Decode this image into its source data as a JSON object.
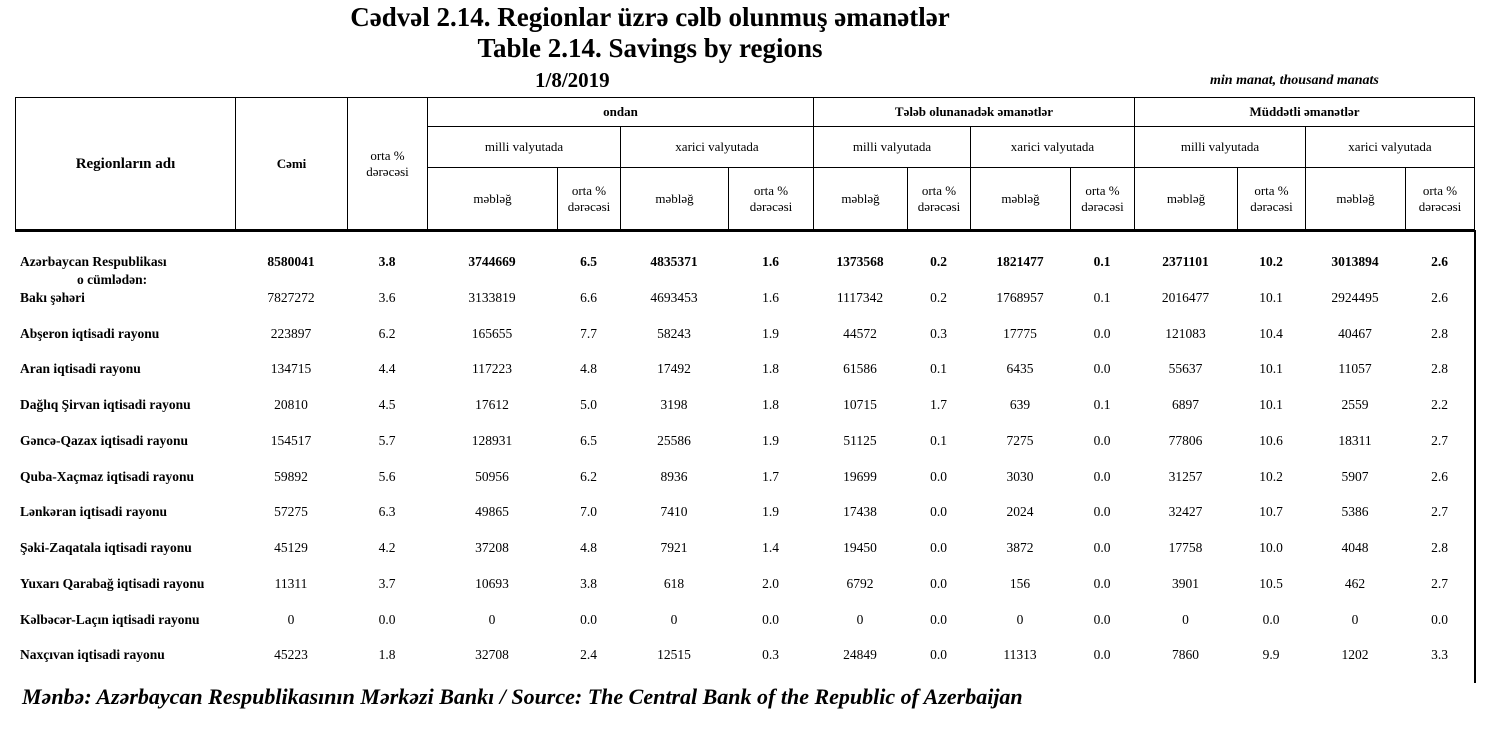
{
  "header": {
    "title_az": "Cədvəl 2.14. Regionlar üzrə cəlb olunmuş əmanətlər",
    "title_en": "Table 2.14. Savings by regions",
    "date": "1/8/2019",
    "units": "min manat, thousand manats"
  },
  "table": {
    "first_columns": [
      "Regionların adı",
      "Cəmi",
      "orta % dərəcəsi"
    ],
    "groups": [
      "ondan",
      "Tələb olunanadək əmanətlər",
      "Müddətli əmanətlər"
    ],
    "subgroups": [
      "milli valyutada",
      "xarici valyutada",
      "milli valyutada",
      "xarici valyutada",
      "milli valyutada",
      "xarici valyutada"
    ],
    "leaves": [
      "məbləğ",
      "orta % dərəcəsi",
      "məbləğ",
      "orta % dərəcəsi",
      "məbləğ",
      "orta % dərəcəsi",
      "məbləğ",
      "orta % dərəcəsi",
      "məbləğ",
      "orta % dərəcəsi",
      "məbləğ",
      "orta % dərəcəsi"
    ],
    "subheading": "o cümlədən:",
    "rows": [
      [
        "Azərbaycan Respublikası",
        "8580041",
        "3.8",
        "3744669",
        "6.5",
        "4835371",
        "1.6",
        "1373568",
        "0.2",
        "1821477",
        "0.1",
        "2371101",
        "10.2",
        "3013894",
        "2.6"
      ],
      [
        "Bakı şəhəri",
        "7827272",
        "3.6",
        "3133819",
        "6.6",
        "4693453",
        "1.6",
        "1117342",
        "0.2",
        "1768957",
        "0.1",
        "2016477",
        "10.1",
        "2924495",
        "2.6"
      ],
      [
        "Abşeron iqtisadi rayonu",
        "223897",
        "6.2",
        "165655",
        "7.7",
        "58243",
        "1.9",
        "44572",
        "0.3",
        "17775",
        "0.0",
        "121083",
        "10.4",
        "40467",
        "2.8"
      ],
      [
        "Aran iqtisadi rayonu",
        "134715",
        "4.4",
        "117223",
        "4.8",
        "17492",
        "1.8",
        "61586",
        "0.1",
        "6435",
        "0.0",
        "55637",
        "10.1",
        "11057",
        "2.8"
      ],
      [
        "Dağlıq Şirvan iqtisadi rayonu",
        "20810",
        "4.5",
        "17612",
        "5.0",
        "3198",
        "1.8",
        "10715",
        "1.7",
        "639",
        "0.1",
        "6897",
        "10.1",
        "2559",
        "2.2"
      ],
      [
        "Gəncə-Qazax iqtisadi rayonu",
        "154517",
        "5.7",
        "128931",
        "6.5",
        "25586",
        "1.9",
        "51125",
        "0.1",
        "7275",
        "0.0",
        "77806",
        "10.6",
        "18311",
        "2.7"
      ],
      [
        "Quba-Xaçmaz iqtisadi rayonu",
        "59892",
        "5.6",
        "50956",
        "6.2",
        "8936",
        "1.7",
        "19699",
        "0.0",
        "3030",
        "0.0",
        "31257",
        "10.2",
        "5907",
        "2.6"
      ],
      [
        "Lənkəran iqtisadi rayonu",
        "57275",
        "6.3",
        "49865",
        "7.0",
        "7410",
        "1.9",
        "17438",
        "0.0",
        "2024",
        "0.0",
        "32427",
        "10.7",
        "5386",
        "2.7"
      ],
      [
        "Şəki-Zaqatala iqtisadi rayonu",
        "45129",
        "4.2",
        "37208",
        "4.8",
        "7921",
        "1.4",
        "19450",
        "0.0",
        "3872",
        "0.0",
        "17758",
        "10.0",
        "4048",
        "2.8"
      ],
      [
        "Yuxarı Qarabağ iqtisadi rayonu",
        "11311",
        "3.7",
        "10693",
        "3.8",
        "618",
        "2.0",
        "6792",
        "0.0",
        "156",
        "0.0",
        "3901",
        "10.5",
        "462",
        "2.7"
      ],
      [
        "Kəlbəcər-Laçın iqtisadi rayonu",
        "0",
        "0.0",
        "0",
        "0.0",
        "0",
        "0.0",
        "0",
        "0.0",
        "0",
        "0.0",
        "0",
        "0.0",
        "0",
        "0.0"
      ],
      [
        "Naxçıvan iqtisadi rayonu",
        "45223",
        "1.8",
        "32708",
        "2.4",
        "12515",
        "0.3",
        "24849",
        "0.0",
        "11313",
        "0.0",
        "7860",
        "9.9",
        "1202",
        "3.3"
      ]
    ]
  },
  "footer": {
    "source": "Mənbə: Azərbaycan Respublikasının Mərkəzi Bankı / Source: The Central Bank of the Republic of Azerbaijan"
  }
}
